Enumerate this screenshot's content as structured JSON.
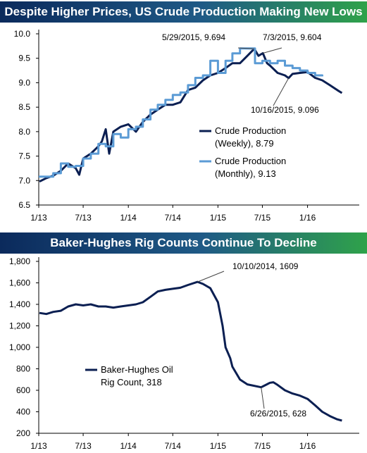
{
  "colors": {
    "weekly": "#0b1f52",
    "monthly": "#5b9bd5",
    "rig": "#0b1f52"
  },
  "chart_data": [
    {
      "type": "line",
      "title": "Despite Higher Prices, US Crude Production Making New Lows",
      "x_ticks": [
        "1/13",
        "7/13",
        "1/14",
        "7/14",
        "1/15",
        "7/15",
        "1/16"
      ],
      "y_ticks": [
        "6.5",
        "7.0",
        "7.5",
        "8.0",
        "8.5",
        "9.0",
        "9.5",
        "10.0"
      ],
      "ylim": [
        6.5,
        10.0
      ],
      "legend_position": "right",
      "series": [
        {
          "name": "Crude Production (Weekly), 8.79",
          "legend_line1": "Crude Production",
          "legend_line2": "(Weekly), 8.79",
          "points": [
            [
              "2013-01-04",
              6.98
            ],
            [
              "2013-02-01",
              7.05
            ],
            [
              "2013-03-01",
              7.1
            ],
            [
              "2013-04-01",
              7.2
            ],
            [
              "2013-05-01",
              7.35
            ],
            [
              "2013-06-01",
              7.25
            ],
            [
              "2013-06-15",
              7.12
            ],
            [
              "2013-07-01",
              7.45
            ],
            [
              "2013-08-01",
              7.55
            ],
            [
              "2013-09-01",
              7.7
            ],
            [
              "2013-09-15",
              7.8
            ],
            [
              "2013-10-01",
              8.05
            ],
            [
              "2013-10-15",
              7.55
            ],
            [
              "2013-11-01",
              8.0
            ],
            [
              "2013-12-01",
              8.1
            ],
            [
              "2014-01-01",
              8.15
            ],
            [
              "2014-02-01",
              8.0
            ],
            [
              "2014-03-01",
              8.2
            ],
            [
              "2014-04-01",
              8.35
            ],
            [
              "2014-05-01",
              8.45
            ],
            [
              "2014-06-01",
              8.55
            ],
            [
              "2014-07-01",
              8.55
            ],
            [
              "2014-08-01",
              8.6
            ],
            [
              "2014-09-01",
              8.85
            ],
            [
              "2014-10-01",
              8.9
            ],
            [
              "2014-11-01",
              9.05
            ],
            [
              "2014-12-01",
              9.15
            ],
            [
              "2015-01-01",
              9.2
            ],
            [
              "2015-02-01",
              9.3
            ],
            [
              "2015-03-01",
              9.4
            ],
            [
              "2015-04-01",
              9.4
            ],
            [
              "2015-05-01",
              9.55
            ],
            [
              "2015-05-29",
              9.694
            ],
            [
              "2015-06-15",
              9.55
            ],
            [
              "2015-07-03",
              9.604
            ],
            [
              "2015-07-20",
              9.4
            ],
            [
              "2015-08-01",
              9.35
            ],
            [
              "2015-09-01",
              9.2
            ],
            [
              "2015-10-01",
              9.15
            ],
            [
              "2015-10-16",
              9.096
            ],
            [
              "2015-11-01",
              9.18
            ],
            [
              "2015-12-01",
              9.2
            ],
            [
              "2016-01-01",
              9.22
            ],
            [
              "2016-02-01",
              9.1
            ],
            [
              "2016-03-01",
              9.05
            ],
            [
              "2016-04-01",
              8.95
            ],
            [
              "2016-05-01",
              8.85
            ],
            [
              "2016-05-20",
              8.79
            ]
          ]
        },
        {
          "name": "Crude Production (Monthly), 9.13",
          "legend_line1": "Crude Production",
          "legend_line2": "(Monthly), 9.13",
          "points": [
            [
              "2013-01-01",
              7.08
            ],
            [
              "2013-02-01",
              7.08
            ],
            [
              "2013-03-01",
              7.15
            ],
            [
              "2013-04-01",
              7.35
            ],
            [
              "2013-05-01",
              7.28
            ],
            [
              "2013-06-01",
              7.3
            ],
            [
              "2013-07-01",
              7.45
            ],
            [
              "2013-08-01",
              7.55
            ],
            [
              "2013-09-01",
              7.75
            ],
            [
              "2013-10-01",
              7.7
            ],
            [
              "2013-11-01",
              7.95
            ],
            [
              "2013-12-01",
              7.88
            ],
            [
              "2014-01-01",
              8.05
            ],
            [
              "2014-02-01",
              8.1
            ],
            [
              "2014-03-01",
              8.25
            ],
            [
              "2014-04-01",
              8.45
            ],
            [
              "2014-05-01",
              8.55
            ],
            [
              "2014-06-01",
              8.65
            ],
            [
              "2014-07-01",
              8.75
            ],
            [
              "2014-08-01",
              8.8
            ],
            [
              "2014-09-01",
              8.95
            ],
            [
              "2014-10-01",
              9.1
            ],
            [
              "2014-11-01",
              9.15
            ],
            [
              "2014-12-01",
              9.45
            ],
            [
              "2015-01-01",
              9.2
            ],
            [
              "2015-02-01",
              9.45
            ],
            [
              "2015-03-01",
              9.6
            ],
            [
              "2015-04-01",
              9.7
            ],
            [
              "2015-05-01",
              9.7
            ],
            [
              "2015-06-01",
              9.4
            ],
            [
              "2015-07-01",
              9.45
            ],
            [
              "2015-08-01",
              9.4
            ],
            [
              "2015-09-01",
              9.45
            ],
            [
              "2015-10-01",
              9.35
            ],
            [
              "2015-11-01",
              9.3
            ],
            [
              "2015-12-01",
              9.25
            ],
            [
              "2016-01-01",
              9.2
            ],
            [
              "2016-02-01",
              9.15
            ],
            [
              "2016-03-01",
              9.13
            ]
          ]
        }
      ],
      "annotations": [
        {
          "text": "5/29/2015, 9.694",
          "x": "2015-05-29",
          "y": 9.694
        },
        {
          "text": "7/3/2015, 9.604",
          "x": "2015-07-03",
          "y": 9.604
        },
        {
          "text": "10/16/2015, 9.096",
          "x": "2015-10-16",
          "y": 9.096
        }
      ]
    },
    {
      "type": "line",
      "title": "Baker-Hughes Rig Counts Continue To Decline",
      "x_ticks": [
        "1/13",
        "7/13",
        "1/14",
        "7/14",
        "1/15",
        "7/15",
        "1/16"
      ],
      "y_ticks": [
        "200",
        "400",
        "600",
        "800",
        "1,000",
        "1,200",
        "1,400",
        "1,600",
        "1,800"
      ],
      "ylim": [
        200,
        1800
      ],
      "legend_position": "left",
      "series": [
        {
          "name": "Baker-Hughes Oil Rig Count, 318",
          "legend_line1": "Baker-Hughes Oil",
          "legend_line2": "Rig Count, 318",
          "points": [
            [
              "2013-01-04",
              1320
            ],
            [
              "2013-02-01",
              1310
            ],
            [
              "2013-03-01",
              1330
            ],
            [
              "2013-04-01",
              1340
            ],
            [
              "2013-05-01",
              1380
            ],
            [
              "2013-06-01",
              1400
            ],
            [
              "2013-07-01",
              1390
            ],
            [
              "2013-08-01",
              1400
            ],
            [
              "2013-09-01",
              1380
            ],
            [
              "2013-10-01",
              1380
            ],
            [
              "2013-11-01",
              1370
            ],
            [
              "2013-12-01",
              1380
            ],
            [
              "2014-01-01",
              1390
            ],
            [
              "2014-02-01",
              1400
            ],
            [
              "2014-03-01",
              1420
            ],
            [
              "2014-04-01",
              1470
            ],
            [
              "2014-05-01",
              1520
            ],
            [
              "2014-06-01",
              1535
            ],
            [
              "2014-07-01",
              1545
            ],
            [
              "2014-08-01",
              1555
            ],
            [
              "2014-09-01",
              1580
            ],
            [
              "2014-10-10",
              1609
            ],
            [
              "2014-11-01",
              1590
            ],
            [
              "2014-12-01",
              1550
            ],
            [
              "2015-01-01",
              1420
            ],
            [
              "2015-01-20",
              1200
            ],
            [
              "2015-02-01",
              1000
            ],
            [
              "2015-02-20",
              900
            ],
            [
              "2015-03-01",
              820
            ],
            [
              "2015-04-01",
              700
            ],
            [
              "2015-05-01",
              655
            ],
            [
              "2015-06-26",
              628
            ],
            [
              "2015-07-15",
              650
            ],
            [
              "2015-08-01",
              670
            ],
            [
              "2015-08-15",
              675
            ],
            [
              "2015-09-01",
              650
            ],
            [
              "2015-10-01",
              600
            ],
            [
              "2015-11-01",
              570
            ],
            [
              "2015-12-01",
              550
            ],
            [
              "2016-01-01",
              520
            ],
            [
              "2016-02-01",
              460
            ],
            [
              "2016-03-01",
              400
            ],
            [
              "2016-04-01",
              360
            ],
            [
              "2016-05-01",
              330
            ],
            [
              "2016-05-20",
              318
            ]
          ]
        }
      ],
      "annotations": [
        {
          "text": "10/10/2014, 1609",
          "x": "2014-10-10",
          "y": 1609
        },
        {
          "text": "6/26/2015, 628",
          "x": "2015-06-26",
          "y": 628
        }
      ]
    }
  ]
}
